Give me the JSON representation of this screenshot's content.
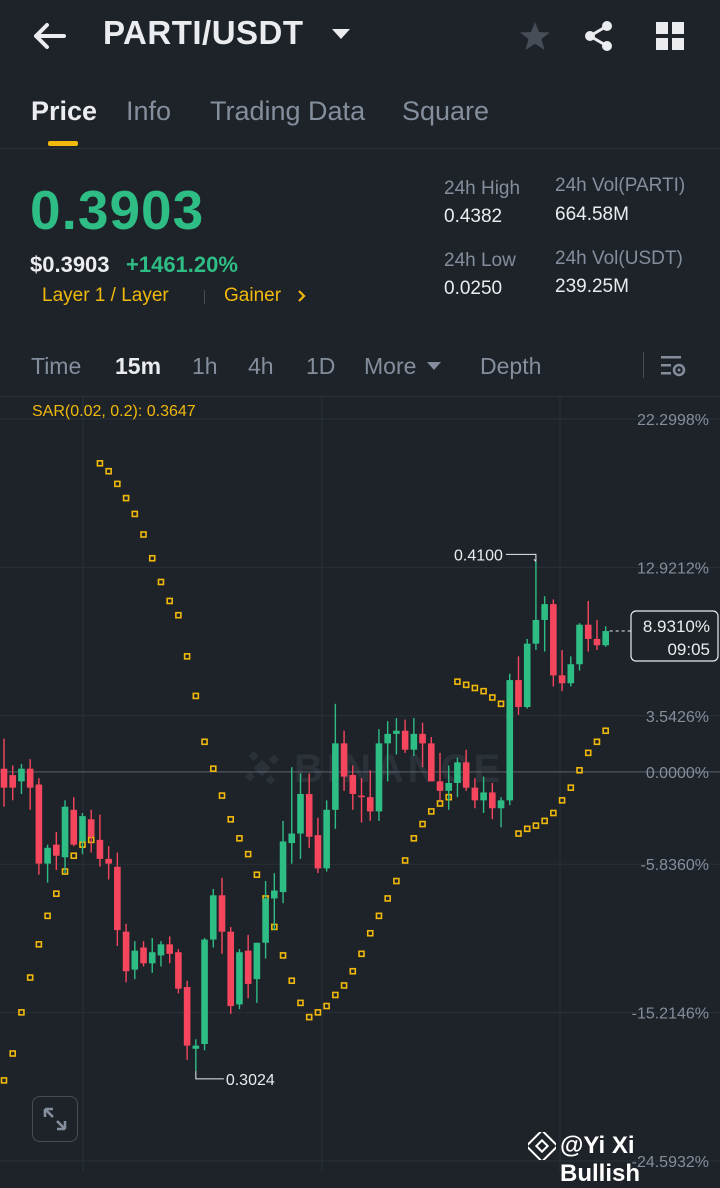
{
  "header": {
    "pair": "PARTI/USDT"
  },
  "tabs": [
    {
      "label": "Price",
      "active": true
    },
    {
      "label": "Info",
      "active": false
    },
    {
      "label": "Trading Data",
      "active": false
    },
    {
      "label": "Square",
      "active": false
    }
  ],
  "ticker": {
    "last_price": "0.3903",
    "usd_price": "$0.3903",
    "change_pct": "+1461.20%",
    "tag_layer": "Layer 1 / Layer",
    "tag_gainer": "Gainer",
    "high_label": "24h High",
    "high_value": "0.4382",
    "low_label": "24h Low",
    "low_value": "0.0250",
    "vol_base_label": "24h Vol(PARTI)",
    "vol_base_value": "664.58M",
    "vol_quote_label": "24h Vol(USDT)",
    "vol_quote_value": "239.25M"
  },
  "timeframes": {
    "time": "Time",
    "m15": "15m",
    "h1": "1h",
    "h4": "4h",
    "d1": "1D",
    "more": "More",
    "depth": "Depth"
  },
  "indicator": {
    "sar_label": "SAR(0.02, 0.2): 0.3647"
  },
  "chart_data": {
    "type": "candlestick",
    "y_axis_labels": [
      "22.2998%",
      "12.9212%",
      "3.5426%",
      "0.0000%",
      "-5.8360%",
      "-15.2146%",
      "-24.5932%"
    ],
    "current_value_label": "8.9310%",
    "countdown": "09:05",
    "high_marker": "0.4100",
    "low_marker": "0.3024",
    "ylim": [
      -24.5932,
      22.2998
    ],
    "candles": [
      [
        0.2,
        2.1,
        -2.2,
        -1.0
      ],
      [
        -0.2,
        0.4,
        -1.8,
        -1.0
      ],
      [
        -0.6,
        0.5,
        -1.4,
        0.2
      ],
      [
        0.2,
        0.8,
        -2.4,
        -1.0
      ],
      [
        -0.8,
        -0.4,
        -6.5,
        -5.8
      ],
      [
        -5.8,
        -4.6,
        -7.0,
        -4.8
      ],
      [
        -4.6,
        -3.8,
        -6.2,
        -5.3
      ],
      [
        -5.4,
        -1.8,
        -6.4,
        -2.2
      ],
      [
        -2.4,
        -1.6,
        -4.7,
        -4.6
      ],
      [
        -4.4,
        -2.6,
        -5.2,
        -2.8
      ],
      [
        -3.0,
        -2.4,
        -5.1,
        -4.1
      ],
      [
        -4.3,
        -2.7,
        -6.0,
        -5.5
      ],
      [
        -5.5,
        -4.7,
        -6.8,
        -5.8
      ],
      [
        -6.0,
        -5.1,
        -11.0,
        -10.0
      ],
      [
        -10.1,
        -9.6,
        -13.3,
        -12.6
      ],
      [
        -12.5,
        -10.7,
        -13.1,
        -11.3
      ],
      [
        -11.1,
        -10.7,
        -12.3,
        -12.1
      ],
      [
        -12.1,
        -10.5,
        -12.7,
        -11.4
      ],
      [
        -11.6,
        -10.7,
        -12.3,
        -10.9
      ],
      [
        -10.9,
        -10.4,
        -12.1,
        -11.5
      ],
      [
        -11.4,
        -11.2,
        -14.0,
        -13.7
      ],
      [
        -13.6,
        -13.2,
        -18.2,
        -17.3
      ],
      [
        -17.5,
        -16.9,
        -18.9,
        -17.3
      ],
      [
        -17.2,
        -10.5,
        -17.6,
        -10.6
      ],
      [
        -10.6,
        -7.4,
        -11.1,
        -7.8
      ],
      [
        -7.8,
        -6.7,
        -11.5,
        -10.1
      ],
      [
        -10.1,
        -9.8,
        -15.3,
        -14.8
      ],
      [
        -14.7,
        -11.2,
        -15.0,
        -11.4
      ],
      [
        -11.3,
        -10.3,
        -14.3,
        -13.4
      ],
      [
        -13.1,
        -10.8,
        -14.6,
        -10.8
      ],
      [
        -10.8,
        -6.9,
        -11.8,
        -8.0
      ],
      [
        -8.0,
        -6.4,
        -10.0,
        -7.5
      ],
      [
        -7.6,
        -3.1,
        -8.3,
        -4.4
      ],
      [
        -4.5,
        0.3,
        -5.8,
        -3.9
      ],
      [
        -3.9,
        -0.1,
        -5.5,
        -1.4
      ],
      [
        -1.4,
        -0.1,
        -4.8,
        -4.1
      ],
      [
        -4.0,
        -2.9,
        -6.4,
        -6.1
      ],
      [
        -6.1,
        -1.8,
        -6.3,
        -2.4
      ],
      [
        -2.4,
        4.3,
        -3.6,
        1.8
      ],
      [
        1.8,
        2.6,
        -1.2,
        -0.3
      ],
      [
        -0.2,
        0.4,
        -2.4,
        -1.4
      ],
      [
        -1.5,
        -0.4,
        -3.2,
        -1.6
      ],
      [
        -1.6,
        0.1,
        -3.1,
        -2.5
      ],
      [
        -2.5,
        2.7,
        -3.1,
        1.8
      ],
      [
        1.8,
        3.2,
        -0.6,
        2.4
      ],
      [
        2.4,
        3.4,
        1.1,
        2.6
      ],
      [
        2.6,
        3.3,
        1.2,
        1.4
      ],
      [
        1.4,
        3.4,
        1.0,
        2.4
      ],
      [
        2.4,
        3.1,
        0.3,
        1.8
      ],
      [
        1.8,
        2.2,
        -0.3,
        -0.6
      ],
      [
        -0.6,
        1.2,
        -1.8,
        -1.2
      ],
      [
        -1.2,
        0.4,
        -2.4,
        -0.7
      ],
      [
        -0.7,
        0.9,
        -1.6,
        0.6
      ],
      [
        0.6,
        1.4,
        -1.2,
        -1.0
      ],
      [
        -1.0,
        -0.4,
        -2.3,
        -1.8
      ],
      [
        -1.8,
        -0.3,
        -2.6,
        -1.3
      ],
      [
        -1.3,
        -0.7,
        -3.0,
        -2.3
      ],
      [
        -2.3,
        -1.6,
        -3.5,
        -1.8
      ],
      [
        -1.8,
        6.2,
        -2.1,
        5.8
      ],
      [
        5.8,
        7.3,
        3.6,
        4.1
      ],
      [
        4.1,
        8.4,
        4.0,
        8.1
      ],
      [
        8.1,
        13.3,
        7.7,
        9.6
      ],
      [
        9.6,
        11.1,
        7.6,
        10.6
      ],
      [
        10.6,
        10.9,
        5.4,
        6.1
      ],
      [
        6.1,
        7.7,
        5.1,
        5.6
      ],
      [
        5.6,
        7.3,
        5.4,
        6.8
      ],
      [
        6.8,
        9.4,
        6.4,
        9.3
      ],
      [
        9.3,
        10.8,
        7.6,
        8.4
      ],
      [
        8.4,
        9.6,
        7.7,
        8.0
      ],
      [
        8.0,
        9.2,
        7.9,
        8.9
      ]
    ],
    "sar": [
      -19.5,
      -17.8,
      -15.2,
      -13.0,
      -10.9,
      -9.1,
      -7.7,
      -6.3,
      -5.3,
      -4.6,
      -4.3,
      19.5,
      19.0,
      18.2,
      17.3,
      16.3,
      15.0,
      13.5,
      12.0,
      10.8,
      9.9,
      7.3,
      4.8,
      1.9,
      0.2,
      -1.5,
      -3.0,
      -4.2,
      -5.2,
      -6.5,
      -8.0,
      -9.8,
      -11.6,
      -13.2,
      -14.6,
      -15.5,
      -15.2,
      -14.8,
      -14.1,
      -13.5,
      -12.6,
      -11.5,
      -10.2,
      -9.1,
      -8.0,
      -6.9,
      -5.6,
      -4.2,
      -3.3,
      -2.5,
      -2.0,
      -1.6,
      5.7,
      5.5,
      5.3,
      5.1,
      4.7,
      4.3,
      3.6,
      -3.9,
      -3.6,
      -3.4,
      -3.1,
      -2.6,
      -1.8,
      -1.0,
      0.1,
      1.2,
      1.9,
      2.6
    ]
  },
  "watermark": "@Yi Xi Bullish",
  "colors": {
    "up": "#2ebd85",
    "down": "#f6465d",
    "accent": "#f0b90b",
    "bg": "#1e2329"
  }
}
